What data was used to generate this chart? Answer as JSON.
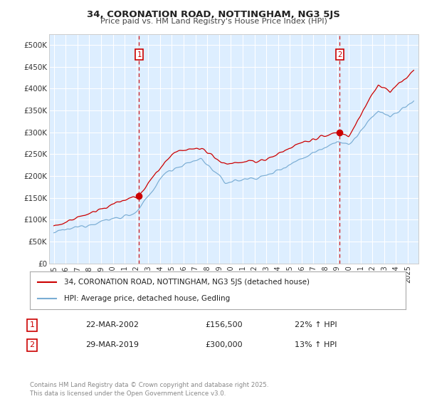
{
  "title": "34, CORONATION ROAD, NOTTINGHAM, NG3 5JS",
  "subtitle": "Price paid vs. HM Land Registry's House Price Index (HPI)",
  "red_label": "34, CORONATION ROAD, NOTTINGHAM, NG3 5JS (detached house)",
  "blue_label": "HPI: Average price, detached house, Gedling",
  "transaction1": {
    "label": "1",
    "date": "22-MAR-2002",
    "price": "£156,500",
    "hpi": "22% ↑ HPI",
    "x_year": 2002.22
  },
  "transaction2": {
    "label": "2",
    "date": "29-MAR-2019",
    "price": "£300,000",
    "hpi": "13% ↑ HPI",
    "x_year": 2019.22
  },
  "ylim": [
    0,
    525000
  ],
  "xlim_start": 1994.6,
  "xlim_end": 2025.9,
  "yticks": [
    0,
    50000,
    100000,
    150000,
    200000,
    250000,
    300000,
    350000,
    400000,
    450000,
    500000
  ],
  "ytick_labels": [
    "£0",
    "£50K",
    "£100K",
    "£150K",
    "£200K",
    "£250K",
    "£300K",
    "£350K",
    "£400K",
    "£450K",
    "£500K"
  ],
  "xtick_years": [
    1995,
    1996,
    1997,
    1998,
    1999,
    2000,
    2001,
    2002,
    2003,
    2004,
    2005,
    2006,
    2007,
    2008,
    2009,
    2010,
    2011,
    2012,
    2013,
    2014,
    2015,
    2016,
    2017,
    2018,
    2019,
    2020,
    2021,
    2022,
    2023,
    2024,
    2025
  ],
  "red_color": "#cc0000",
  "blue_color": "#7aadd4",
  "dashed_color": "#cc0000",
  "plot_bg_color": "#ddeeff",
  "background_color": "#ffffff",
  "grid_color": "#ffffff",
  "footer": "Contains HM Land Registry data © Crown copyright and database right 2025.\nThis data is licensed under the Open Government Licence v3.0."
}
